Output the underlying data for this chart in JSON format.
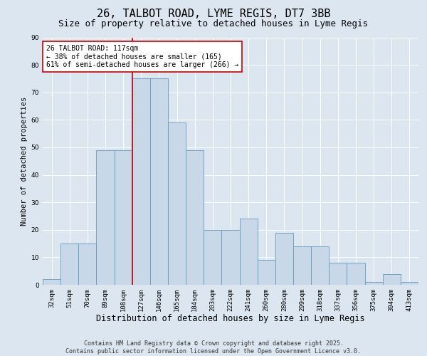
{
  "title_line1": "26, TALBOT ROAD, LYME REGIS, DT7 3BB",
  "title_line2": "Size of property relative to detached houses in Lyme Regis",
  "xlabel": "Distribution of detached houses by size in Lyme Regis",
  "ylabel": "Number of detached properties",
  "categories": [
    "32sqm",
    "51sqm",
    "70sqm",
    "89sqm",
    "108sqm",
    "127sqm",
    "146sqm",
    "165sqm",
    "184sqm",
    "203sqm",
    "222sqm",
    "241sqm",
    "260sqm",
    "280sqm",
    "299sqm",
    "318sqm",
    "337sqm",
    "356sqm",
    "375sqm",
    "394sqm",
    "413sqm"
  ],
  "values": [
    2,
    15,
    15,
    49,
    49,
    75,
    75,
    59,
    49,
    20,
    20,
    24,
    9,
    19,
    14,
    14,
    8,
    8,
    1,
    4,
    1
  ],
  "bar_color": "#c8d8e8",
  "bar_edge_color": "#6699bb",
  "vline_index": 5,
  "vline_color": "#cc0000",
  "annotation_text": "26 TALBOT ROAD: 117sqm\n← 38% of detached houses are smaller (165)\n61% of semi-detached houses are larger (266) →",
  "annotation_box_color": "#ffffff",
  "annotation_box_edge_color": "#cc0000",
  "ylim": [
    0,
    90
  ],
  "yticks": [
    0,
    10,
    20,
    30,
    40,
    50,
    60,
    70,
    80,
    90
  ],
  "background_color": "#dce6f0",
  "plot_bg_color": "#dce6f0",
  "grid_color": "#ffffff",
  "footer_line1": "Contains HM Land Registry data © Crown copyright and database right 2025.",
  "footer_line2": "Contains public sector information licensed under the Open Government Licence v3.0.",
  "title_fontsize": 11,
  "subtitle_fontsize": 9,
  "xlabel_fontsize": 8.5,
  "ylabel_fontsize": 7.5,
  "tick_fontsize": 6.5,
  "annotation_fontsize": 7,
  "footer_fontsize": 6
}
